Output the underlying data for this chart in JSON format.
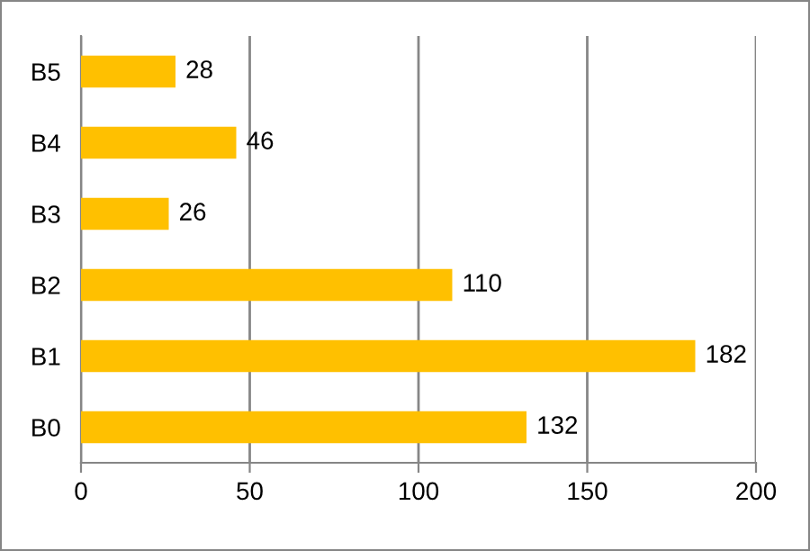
{
  "chart_data": {
    "type": "bar",
    "orientation": "horizontal",
    "categories": [
      "B5",
      "B4",
      "B3",
      "B2",
      "B1",
      "B0"
    ],
    "values": [
      28,
      46,
      26,
      110,
      182,
      132
    ],
    "color": "#ffc000",
    "xlim": [
      0,
      200
    ],
    "xticks": [
      0,
      50,
      100,
      150,
      200
    ],
    "grid": "x",
    "data_labels": true
  }
}
